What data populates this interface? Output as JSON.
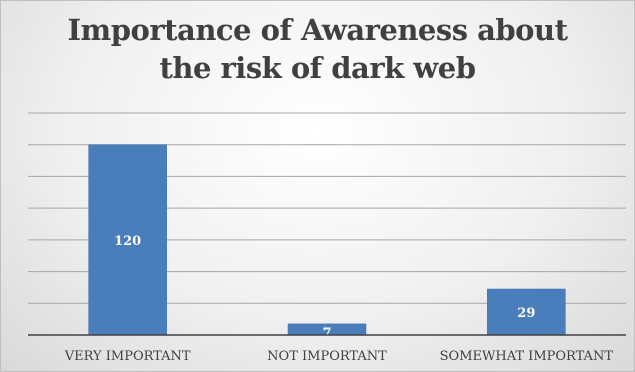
{
  "chart_data": {
    "type": "bar",
    "title_lines": [
      "Importance of Awareness about",
      "the risk of dark web"
    ],
    "categories": [
      "VERY IMPORTANT",
      "NOT IMPORTANT",
      "SOMEWHAT IMPORTANT"
    ],
    "values": [
      120,
      7,
      29
    ],
    "ylim": [
      0,
      140
    ],
    "grid": true,
    "bar_color": "#4a7ebb",
    "data_labels": true
  }
}
